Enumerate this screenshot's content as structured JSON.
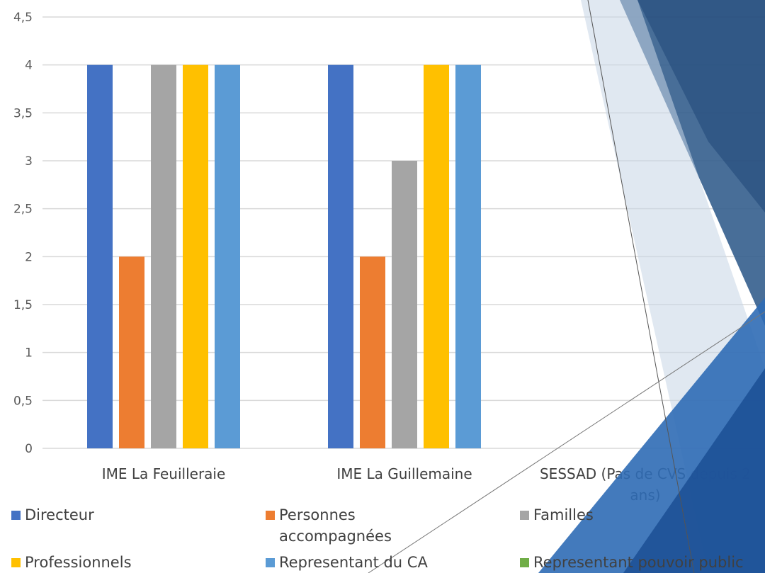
{
  "chart_data": {
    "type": "bar",
    "categories": [
      "IME La Feuilleraie",
      "IME La Guillemaine",
      "SESSAD (Pas de CVS depuis 2 ans)"
    ],
    "category_lines": [
      [
        "IME La Feuilleraie"
      ],
      [
        "IME La Guillemaine"
      ],
      [
        "SESSAD (Pas de CVS depuis 2",
        "ans)"
      ]
    ],
    "series": [
      {
        "name": "Directeur",
        "color": "#4472C4",
        "values": [
          4,
          4,
          null
        ]
      },
      {
        "name": "Personnes accompagnées",
        "color": "#ED7D31",
        "values": [
          2,
          2,
          null
        ]
      },
      {
        "name": "Familles",
        "color": "#A5A5A5",
        "values": [
          4,
          3,
          null
        ]
      },
      {
        "name": "Professionnels",
        "color": "#FFC000",
        "values": [
          4,
          4,
          null
        ]
      },
      {
        "name": "Representant du CA",
        "color": "#5B9BD5",
        "values": [
          4,
          4,
          null
        ]
      },
      {
        "name": "Representant pouvoir public",
        "color": "#70AD47",
        "values": [
          null,
          null,
          null
        ]
      }
    ],
    "ylim": [
      0,
      4.5
    ],
    "yticks": [
      "0",
      "0,5",
      "1",
      "1,5",
      "2",
      "2,5",
      "3",
      "3,5",
      "4",
      "4,5"
    ],
    "grid": true,
    "legend_position": "bottom",
    "title": "",
    "xlabel": "",
    "ylabel": ""
  },
  "legend_lines": [
    [
      "Directeur"
    ],
    [
      "Personnes",
      "accompagnées"
    ],
    [
      "Familles"
    ],
    [
      "Professionnels"
    ],
    [
      "Representant du CA"
    ],
    [
      "Representant pouvoir public"
    ]
  ]
}
